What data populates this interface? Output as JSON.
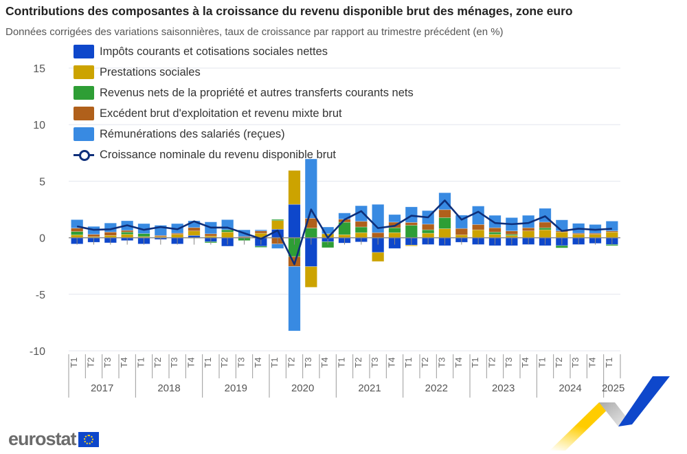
{
  "title": "Contributions des composantes à la croissance du revenu disponible brut des ménages, zone euro",
  "subtitle": "Données corrigées des variations saisonnières, taux de croissance par rapport au trimestre précédent (en %)",
  "logo": "eurostat",
  "chart_data": {
    "type": "bar",
    "stacked": true,
    "ylim": [
      -10,
      15
    ],
    "yticks": [
      "15",
      "10",
      "5",
      "0",
      "-5",
      "-10"
    ],
    "grid": true,
    "legend_position": "top-left",
    "quarters": [
      "T1",
      "T2",
      "T3",
      "T4",
      "T1",
      "T2",
      "T3",
      "T4",
      "T1",
      "T2",
      "T3",
      "T4",
      "T1",
      "T2",
      "T3",
      "T4",
      "T1",
      "T2",
      "T3",
      "T4",
      "T1",
      "T2",
      "T3",
      "T4",
      "T1",
      "T2",
      "T3",
      "T4",
      "T1",
      "T2",
      "T3",
      "T4",
      "T1"
    ],
    "years": [
      "2017",
      "2018",
      "2019",
      "2020",
      "2021",
      "2022",
      "2023",
      "2024",
      "2025"
    ],
    "series": [
      {
        "name": "Impôts courants et cotisations sociales nettes",
        "type": "bar",
        "color": "#0e47cb",
        "values": [
          -0.55,
          -0.4,
          -0.45,
          -0.25,
          -0.55,
          -0.15,
          -0.55,
          0.2,
          -0.35,
          -0.75,
          0,
          -0.75,
          0.75,
          2.95,
          -2.55,
          -0.35,
          -0.47,
          -0.37,
          -1.3,
          -0.95,
          -0.65,
          -0.6,
          -0.7,
          -0.4,
          -0.6,
          -0.7,
          -0.7,
          -0.6,
          -0.7,
          -0.7,
          -0.6,
          -0.5,
          -0.6
        ]
      },
      {
        "name": "Prestations sociales",
        "type": "bar",
        "color": "#cca300",
        "values": [
          0.25,
          0.1,
          0.2,
          0.3,
          0.1,
          0.1,
          0.3,
          0.4,
          0.15,
          0.5,
          0,
          0.4,
          0.77,
          3.0,
          -1.83,
          0.35,
          0.27,
          0.45,
          -0.8,
          0.45,
          -0.08,
          0.4,
          0.8,
          0.25,
          0.7,
          0.3,
          0.2,
          0.6,
          0.7,
          0.5,
          0.3,
          0.3,
          0.5
        ]
      },
      {
        "name": "Revenus nets de la propriété et autres transferts courants nets",
        "type": "bar",
        "color": "#2e9e35",
        "values": [
          0.3,
          0,
          0,
          0.2,
          0.27,
          0,
          0,
          -0.05,
          -0.1,
          0.2,
          -0.25,
          -0.1,
          0.1,
          -1.67,
          0.85,
          -0.53,
          1.1,
          0.5,
          0,
          0.43,
          1.1,
          0.3,
          0.98,
          0,
          0,
          0.2,
          0.1,
          0,
          0.18,
          -0.2,
          0,
          0,
          -0.1
        ]
      },
      {
        "name": "Excédent brut d'exploitation et revenu mixte brut",
        "type": "bar",
        "color": "#b0601b",
        "values": [
          0.3,
          0.2,
          0.3,
          0.15,
          0,
          0.1,
          0.1,
          0.3,
          0.2,
          0,
          0.1,
          0.2,
          -0.55,
          -0.87,
          0.87,
          0,
          0.27,
          0.5,
          0.45,
          0.5,
          0.25,
          0.5,
          0.7,
          0.57,
          0.47,
          0.38,
          0.3,
          0.28,
          0.5,
          0.1,
          0.1,
          0.1,
          0.1
        ]
      },
      {
        "name": "Rémunérations des salariés (reçues)",
        "type": "bar",
        "color": "#388ae2",
        "values": [
          0.75,
          0.7,
          0.8,
          0.85,
          0.88,
          0.9,
          0.85,
          0.6,
          1.05,
          0.9,
          0.6,
          0.1,
          -0.4,
          -5.7,
          5.25,
          0.6,
          0.55,
          1.38,
          2.5,
          0.67,
          1.38,
          1.2,
          1.5,
          1.18,
          1.63,
          1.1,
          1.18,
          1.1,
          1.22,
          0.98,
          0.87,
          0.77,
          0.87
        ]
      },
      {
        "name": "Croissance nominale du revenu disponible brut",
        "type": "line",
        "color": "#0e2f7a",
        "values": [
          1.0,
          0.7,
          0.75,
          1.1,
          0.7,
          0.95,
          0.75,
          1.45,
          0.9,
          0.9,
          0.4,
          -0.1,
          0.65,
          -2.35,
          2.5,
          0.0,
          1.6,
          2.35,
          0.85,
          1.05,
          1.95,
          1.8,
          3.3,
          1.6,
          2.3,
          1.3,
          1.2,
          1.3,
          1.9,
          0.6,
          0.8,
          0.7,
          0.8
        ]
      }
    ]
  }
}
